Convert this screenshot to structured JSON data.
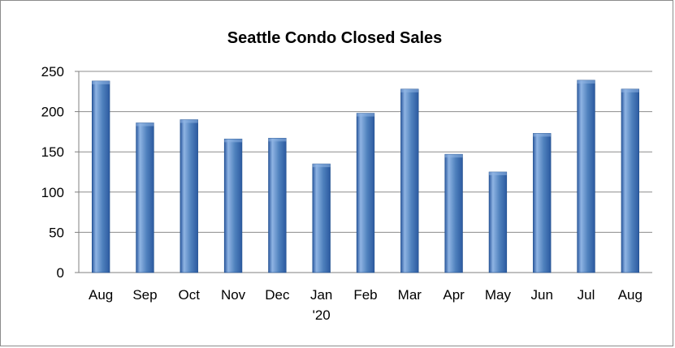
{
  "colors": {
    "bar_light": "#8fb4e3",
    "bar_mid": "#4f81bd",
    "bar_dark": "#2c5aa0",
    "bar_stroke": "#1f4e8c",
    "gridline": "#8c8c8c",
    "axis": "#808080",
    "frame": "#8c8c8c"
  },
  "chart_data": {
    "type": "bar",
    "title": "Seattle Condo Closed Sales",
    "xlabel": "",
    "ylabel": "",
    "categories": [
      "Aug",
      "Sep",
      "Oct",
      "Nov",
      "Dec",
      "Jan\n'20",
      "Feb",
      "Mar",
      "Apr",
      "May",
      "Jun",
      "Jul",
      "Aug"
    ],
    "values": [
      238,
      186,
      190,
      166,
      167,
      135,
      198,
      228,
      147,
      125,
      173,
      239,
      228
    ],
    "ylim": [
      0,
      250
    ],
    "yticks": [
      0,
      50,
      100,
      150,
      200,
      250
    ],
    "grid": true,
    "legend": "none"
  }
}
